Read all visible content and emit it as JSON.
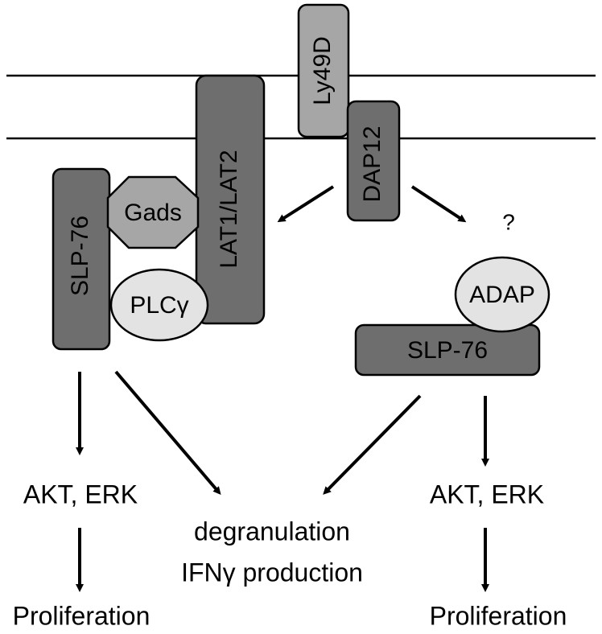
{
  "colors": {
    "dark_grey": "#6e6e6e",
    "mid_grey": "#a6a6a6",
    "light_grey": "#e3e3e3",
    "outline": "#000000",
    "background": "#ffffff"
  },
  "nodes": {
    "ly49d": "Ly49D",
    "dap12": "DAP12",
    "lat": "LAT1/LAT2",
    "gads": "Gads",
    "slp76_left": "SLP-76",
    "plc": "PLCγ",
    "question": "?",
    "adap": "ADAP",
    "slp76_right": "SLP-76"
  },
  "outputs": {
    "akt_erk_left": "AKT, ERK",
    "akt_erk_right": "AKT, ERK",
    "degranulation": "degranulation",
    "ifn_production": "IFNγ production",
    "proliferation_left": "Proliferation",
    "proliferation_right": "Proliferation"
  }
}
